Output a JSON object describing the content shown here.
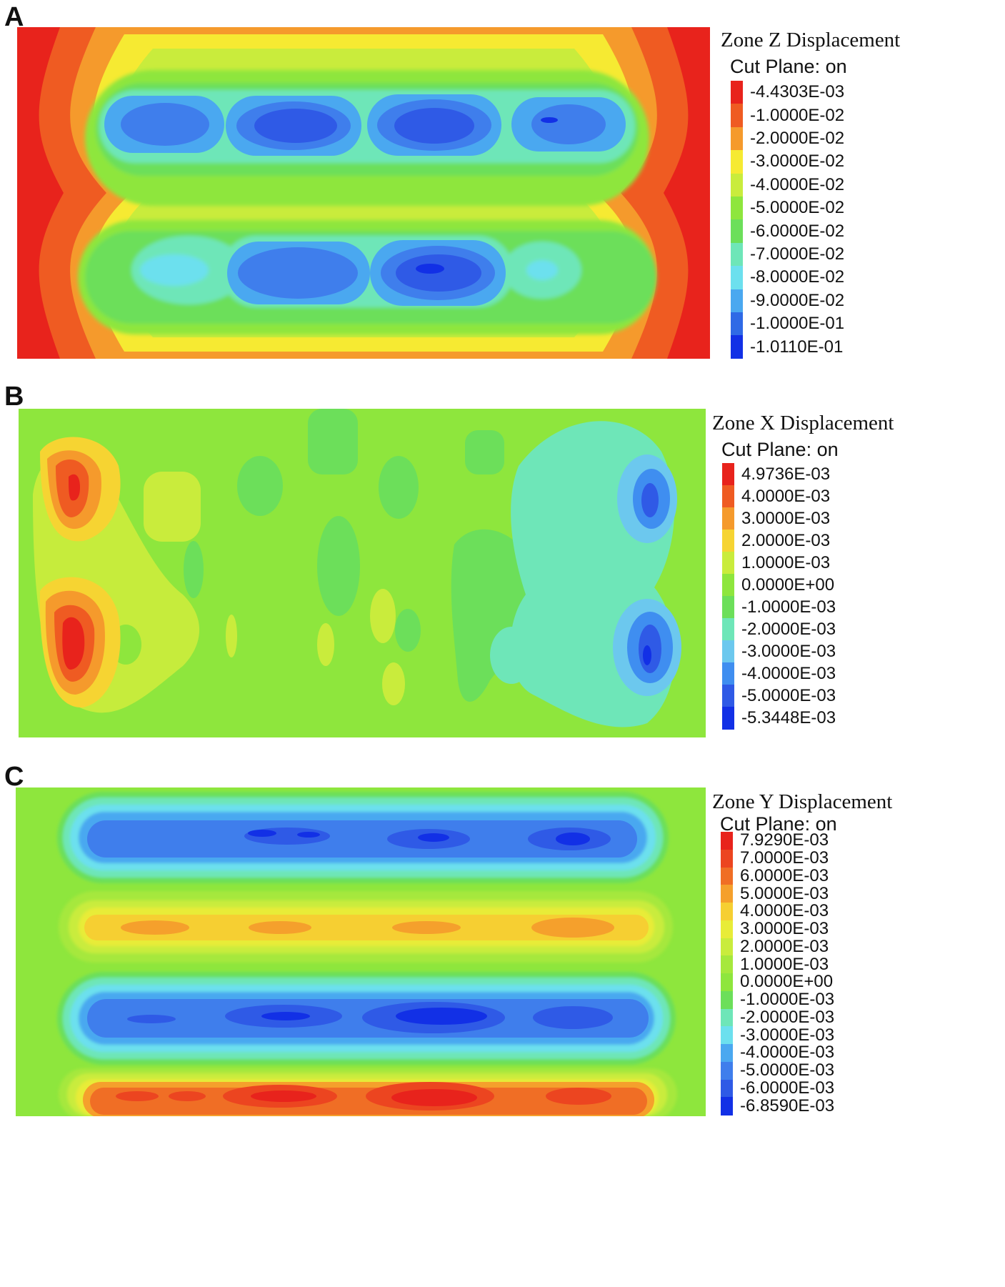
{
  "chart_data": [
    {
      "type": "heatmap",
      "panel_label": "A",
      "title": "Zone Z Displacement",
      "subtitle": "Cut Plane: on",
      "levels": [
        {
          "label": "-4.4303E-03",
          "value": -0.0044303,
          "color": "#e8231c"
        },
        {
          "label": "-1.0000E-02",
          "value": -0.01,
          "color": "#ef5b22"
        },
        {
          "label": "-2.0000E-02",
          "value": -0.02,
          "color": "#f59a2c"
        },
        {
          "label": "-3.0000E-02",
          "value": -0.03,
          "color": "#f6ea32"
        },
        {
          "label": "-4.0000E-02",
          "value": -0.04,
          "color": "#c9ec3c"
        },
        {
          "label": "-5.0000E-02",
          "value": -0.05,
          "color": "#8ee63d"
        },
        {
          "label": "-6.0000E-02",
          "value": -0.06,
          "color": "#6cdf5a"
        },
        {
          "label": "-7.0000E-02",
          "value": -0.07,
          "color": "#6ee6b8"
        },
        {
          "label": "-8.0000E-02",
          "value": -0.08,
          "color": "#6ce0ee"
        },
        {
          "label": "-9.0000E-02",
          "value": -0.09,
          "color": "#4aa8f0"
        },
        {
          "label": "-1.0000E-01",
          "value": -0.1,
          "color": "#2f6ae6"
        },
        {
          "label": "-1.0110E-01",
          "value": -0.1011,
          "color": "#1230e6"
        }
      ]
    },
    {
      "type": "heatmap",
      "panel_label": "B",
      "title": "Zone X Displacement",
      "subtitle": "Cut Plane: on",
      "levels": [
        {
          "label": "4.9736E-03",
          "value": 0.0049736,
          "color": "#e8231c"
        },
        {
          "label": "4.0000E-03",
          "value": 0.004,
          "color": "#ef5b22"
        },
        {
          "label": "3.0000E-03",
          "value": 0.003,
          "color": "#f59a2c"
        },
        {
          "label": "2.0000E-03",
          "value": 0.002,
          "color": "#f6d432"
        },
        {
          "label": "1.0000E-03",
          "value": 0.001,
          "color": "#c9ec3c"
        },
        {
          "label": "0.0000E+00",
          "value": 0.0,
          "color": "#8ee63d"
        },
        {
          "label": "-1.0000E-03",
          "value": -0.001,
          "color": "#6cdf5a"
        },
        {
          "label": "-2.0000E-03",
          "value": -0.002,
          "color": "#6ee6b8"
        },
        {
          "label": "-3.0000E-03",
          "value": -0.003,
          "color": "#6cc8ee"
        },
        {
          "label": "-4.0000E-03",
          "value": -0.004,
          "color": "#3f8ef0"
        },
        {
          "label": "-5.0000E-03",
          "value": -0.005,
          "color": "#2f5ae6"
        },
        {
          "label": "-5.3448E-03",
          "value": -0.0053448,
          "color": "#1230e6"
        }
      ]
    },
    {
      "type": "heatmap",
      "panel_label": "C",
      "title": "Zone Y Displacement",
      "subtitle": "Cut Plane: on",
      "levels": [
        {
          "label": "7.9290E-03",
          "value": 0.007929,
          "color": "#e8231c"
        },
        {
          "label": "7.0000E-03",
          "value": 0.007,
          "color": "#ec4520"
        },
        {
          "label": "6.0000E-03",
          "value": 0.006,
          "color": "#f06e25"
        },
        {
          "label": "5.0000E-03",
          "value": 0.005,
          "color": "#f5a02c"
        },
        {
          "label": "4.0000E-03",
          "value": 0.004,
          "color": "#f6cf32"
        },
        {
          "label": "3.0000E-03",
          "value": 0.003,
          "color": "#e8ec38"
        },
        {
          "label": "2.0000E-03",
          "value": 0.002,
          "color": "#c9ec3c"
        },
        {
          "label": "1.0000E-03",
          "value": 0.001,
          "color": "#a6e83c"
        },
        {
          "label": "0.0000E+00",
          "value": 0.0,
          "color": "#8ee63d"
        },
        {
          "label": "-1.0000E-03",
          "value": -0.001,
          "color": "#6cdf5a"
        },
        {
          "label": "-2.0000E-03",
          "value": -0.002,
          "color": "#6ee6b8"
        },
        {
          "label": "-3.0000E-03",
          "value": -0.003,
          "color": "#6ce0ee"
        },
        {
          "label": "-4.0000E-03",
          "value": -0.004,
          "color": "#4aa8f0"
        },
        {
          "label": "-5.0000E-03",
          "value": -0.005,
          "color": "#3f7eec"
        },
        {
          "label": "-6.0000E-03",
          "value": -0.006,
          "color": "#2f5ae6"
        },
        {
          "label": "-6.8590E-03",
          "value": -0.006859,
          "color": "#1230e6"
        }
      ]
    }
  ]
}
